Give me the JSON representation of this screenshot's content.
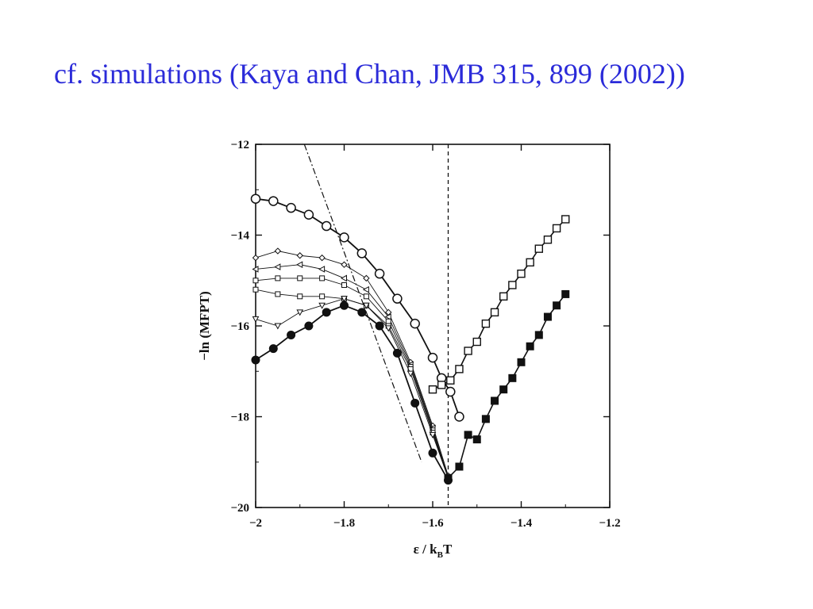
{
  "slide": {
    "title": "cf. simulations (Kaya and Chan, JMB 315, 899 (2002))"
  },
  "chart_data": {
    "type": "scatter",
    "title": "",
    "xlabel": "ε / kBT",
    "xlabel_main": "ε / k",
    "xlabel_sub": "B",
    "xlabel_tail": "T",
    "ylabel": "−ln (MFPT)",
    "xlim": [
      -2,
      -1.2
    ],
    "ylim": [
      -20,
      -12
    ],
    "x_ticks": [
      -2,
      -1.8,
      -1.6,
      -1.4,
      -1.2
    ],
    "x_tick_labels": [
      "−2",
      "−1.8",
      "−1.6",
      "−1.4",
      "−1.2"
    ],
    "y_ticks": [
      -20,
      -18,
      -16,
      -14,
      -12
    ],
    "y_tick_labels": [
      "−20",
      "−18",
      "−16",
      "−14",
      "−12"
    ],
    "grid": false,
    "legend": "none",
    "vertical_line_x": -1.565,
    "dashdot_line": [
      [
        -1.89,
        -12
      ],
      [
        -1.625,
        -19.0
      ]
    ],
    "series": [
      {
        "marker": "open-circle",
        "x": [
          -2.0,
          -1.96,
          -1.92,
          -1.88,
          -1.84,
          -1.8,
          -1.76,
          -1.72,
          -1.68,
          -1.64,
          -1.6,
          -1.58,
          -1.56,
          -1.54
        ],
        "y": [
          -13.2,
          -13.25,
          -13.4,
          -13.55,
          -13.8,
          -14.05,
          -14.4,
          -14.85,
          -15.4,
          -15.95,
          -16.7,
          -17.15,
          -17.45,
          -18.0
        ]
      },
      {
        "marker": "diamond",
        "x": [
          -2.0,
          -1.95,
          -1.9,
          -1.85,
          -1.8,
          -1.75,
          -1.7,
          -1.65,
          -1.6,
          -1.565
        ],
        "y": [
          -14.5,
          -14.35,
          -14.45,
          -14.5,
          -14.65,
          -14.95,
          -15.7,
          -16.8,
          -18.2,
          -19.3
        ]
      },
      {
        "marker": "left-triangle",
        "x": [
          -2.0,
          -1.95,
          -1.9,
          -1.85,
          -1.8,
          -1.75,
          -1.7,
          -1.65,
          -1.6,
          -1.565
        ],
        "y": [
          -14.75,
          -14.7,
          -14.65,
          -14.75,
          -14.95,
          -15.2,
          -15.8,
          -16.85,
          -18.25,
          -19.35
        ]
      },
      {
        "marker": "small-square",
        "x": [
          -2.0,
          -1.95,
          -1.9,
          -1.85,
          -1.8,
          -1.75,
          -1.7,
          -1.65,
          -1.6,
          -1.565
        ],
        "y": [
          -15.0,
          -14.95,
          -14.95,
          -14.95,
          -15.1,
          -15.35,
          -15.9,
          -16.9,
          -18.3,
          -19.35
        ]
      },
      {
        "marker": "small-square-2",
        "x": [
          -2.0,
          -1.95,
          -1.9,
          -1.85,
          -1.8,
          -1.75,
          -1.7,
          -1.65,
          -1.6,
          -1.565
        ],
        "y": [
          -15.2,
          -15.3,
          -15.35,
          -15.35,
          -15.4,
          -15.55,
          -16.0,
          -16.95,
          -18.35,
          -19.35
        ]
      },
      {
        "marker": "down-triangle",
        "x": [
          -2.0,
          -1.95,
          -1.9,
          -1.85,
          -1.8,
          -1.75,
          -1.7,
          -1.65,
          -1.6,
          -1.565
        ],
        "y": [
          -15.85,
          -16.0,
          -15.7,
          -15.55,
          -15.4,
          -15.55,
          -16.05,
          -17.05,
          -18.4,
          -19.35
        ]
      },
      {
        "marker": "filled-circle",
        "x": [
          -2.0,
          -1.96,
          -1.92,
          -1.88,
          -1.84,
          -1.8,
          -1.76,
          -1.72,
          -1.68,
          -1.64,
          -1.6,
          -1.565
        ],
        "y": [
          -16.75,
          -16.5,
          -16.2,
          -16.0,
          -15.7,
          -15.55,
          -15.7,
          -16.0,
          -16.6,
          -17.7,
          -18.8,
          -19.4
        ]
      },
      {
        "marker": "open-square",
        "x": [
          -1.6,
          -1.58,
          -1.56,
          -1.54,
          -1.52,
          -1.5,
          -1.48,
          -1.46,
          -1.44,
          -1.42,
          -1.4,
          -1.38,
          -1.36,
          -1.34,
          -1.32,
          -1.3
        ],
        "y": [
          -17.4,
          -17.3,
          -17.2,
          -16.95,
          -16.55,
          -16.35,
          -15.95,
          -15.7,
          -15.35,
          -15.1,
          -14.85,
          -14.6,
          -14.3,
          -14.1,
          -13.85,
          -13.65
        ]
      },
      {
        "marker": "filled-square",
        "x": [
          -1.565,
          -1.54,
          -1.52,
          -1.5,
          -1.48,
          -1.46,
          -1.44,
          -1.42,
          -1.4,
          -1.38,
          -1.36,
          -1.34,
          -1.32,
          -1.3
        ],
        "y": [
          -19.35,
          -19.1,
          -18.4,
          -18.5,
          -18.05,
          -17.65,
          -17.4,
          -17.15,
          -16.8,
          -16.45,
          -16.2,
          -15.8,
          -15.55,
          -15.3
        ]
      }
    ]
  }
}
